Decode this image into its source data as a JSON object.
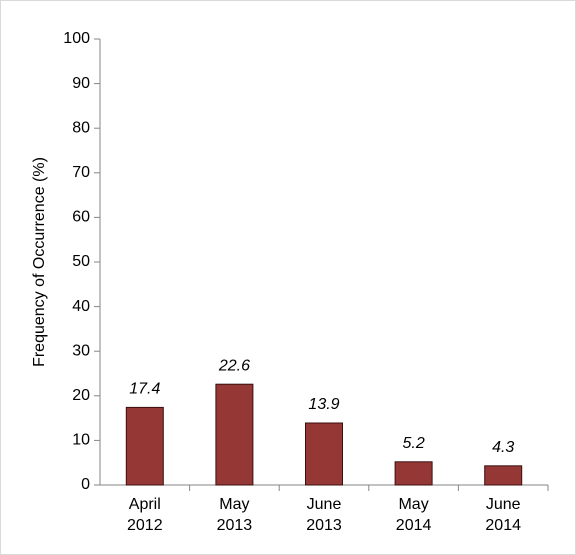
{
  "chart_data": {
    "type": "bar",
    "y_label": "Frequency of Occurrence (%)",
    "categories": [
      "April 2012",
      "May 2013",
      "June 2013",
      "May 2014",
      "June 2014"
    ],
    "values": [
      17.4,
      22.6,
      13.9,
      5.2,
      4.3
    ],
    "color": "#953735",
    "ylim": [
      0,
      100
    ],
    "yticks": [
      0,
      10,
      20,
      30,
      40,
      50,
      60,
      70,
      80,
      90,
      100
    ]
  }
}
